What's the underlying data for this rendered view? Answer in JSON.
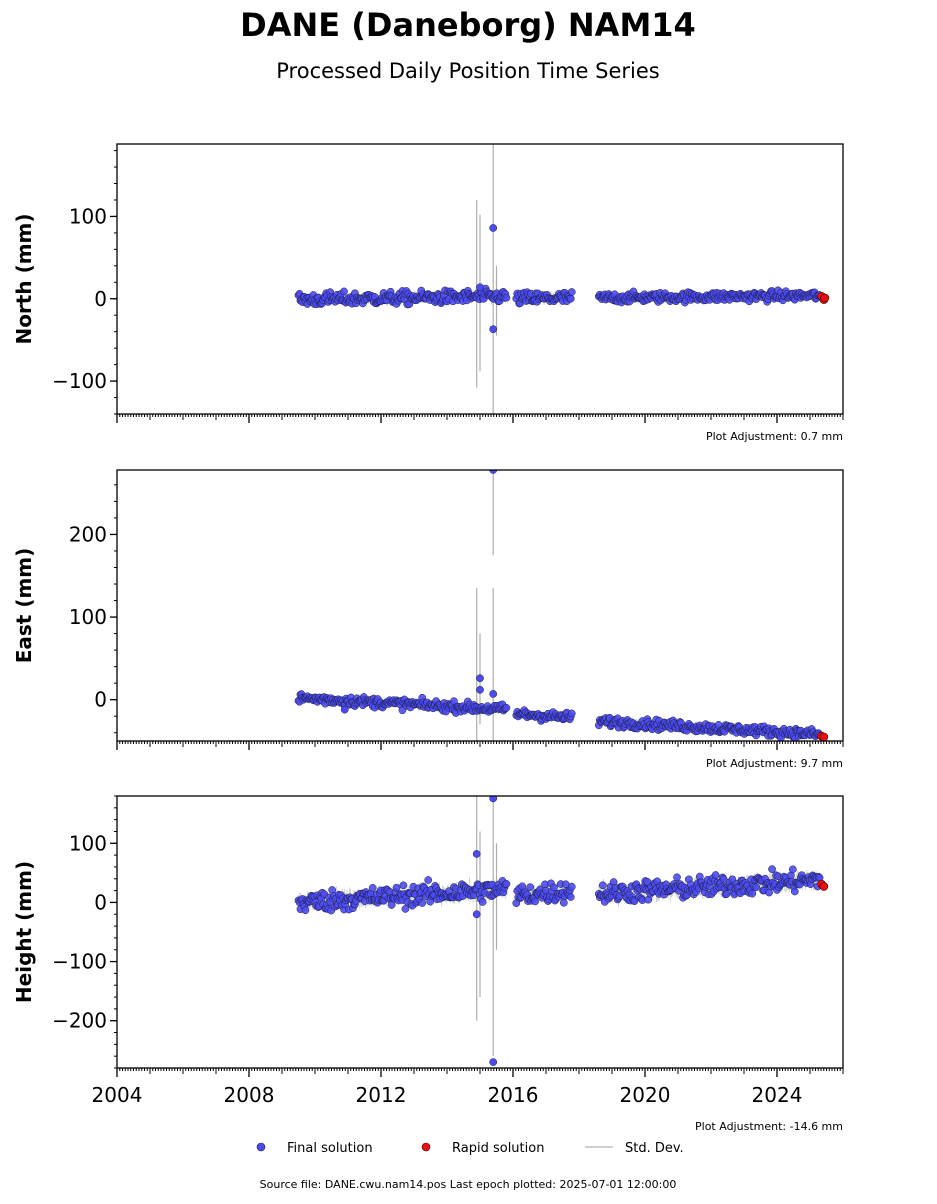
{
  "title": "DANE (Daneborg) NAM14",
  "subtitle": "Processed Daily Position Time Series",
  "footer": "Source file: DANE.cwu.nam14.pos  Last epoch plotted: 2025-07-01 12:00:00",
  "legend": {
    "final_label": "Final solution",
    "rapid_label": "Rapid solution",
    "std_label": "Std. Dev."
  },
  "colors": {
    "final": "#4b4bf0",
    "final_edge": "#1a1a40",
    "rapid": "#e81010",
    "std": "#bdbdbd"
  },
  "chart_data": [
    {
      "type": "scatter",
      "component": "north",
      "ylabel": "North (mm)",
      "ylim": [
        -140,
        188
      ],
      "yticks": [
        -100,
        0,
        100
      ],
      "xlim": [
        2004.0,
        2026.0
      ],
      "xticks": [
        2004,
        2008,
        2012,
        2016,
        2020,
        2024
      ],
      "show_xtick_labels": false,
      "adjustment": "Plot Adjustment: 0.7 mm",
      "segments": [
        {
          "start": 2009.5,
          "end": 2015.8,
          "mean_start": -1,
          "mean_end": 3,
          "noise": 4,
          "std": 5
        },
        {
          "start": 2016.1,
          "end": 2017.8,
          "mean_start": 0,
          "mean_end": 1,
          "noise": 4,
          "std": 5
        },
        {
          "start": 2018.6,
          "end": 2025.3,
          "mean_start": 1,
          "mean_end": 4,
          "noise": 3,
          "std": 4
        }
      ],
      "outliers": [
        [
          2015.4,
          86
        ],
        [
          2015.4,
          -37
        ],
        [
          2015.0,
          14
        ]
      ],
      "std_spikes": [
        [
          2014.9,
          -108,
          120
        ],
        [
          2015.4,
          -140,
          188
        ],
        [
          2015.0,
          -88,
          102
        ],
        [
          2015.5,
          -45,
          40
        ]
      ],
      "rapid": [
        [
          2025.35,
          3
        ],
        [
          2025.42,
          -1
        ],
        [
          2025.45,
          1
        ]
      ]
    },
    {
      "type": "scatter",
      "component": "east",
      "ylabel": "East (mm)",
      "ylim": [
        -50,
        278
      ],
      "yticks": [
        0,
        100,
        200
      ],
      "xlim": [
        2004.0,
        2026.0
      ],
      "xticks": [
        2004,
        2008,
        2012,
        2016,
        2020,
        2024
      ],
      "show_xtick_labels": false,
      "adjustment": "Plot Adjustment: 9.7 mm",
      "segments": [
        {
          "start": 2009.5,
          "end": 2015.8,
          "mean_start": 2,
          "mean_end": -12,
          "noise": 3,
          "std": 4
        },
        {
          "start": 2016.1,
          "end": 2017.8,
          "mean_start": -17,
          "mean_end": -22,
          "noise": 3,
          "std": 4
        },
        {
          "start": 2018.6,
          "end": 2025.3,
          "mean_start": -26,
          "mean_end": -42,
          "noise": 3,
          "std": 4
        }
      ],
      "outliers": [
        [
          2015.4,
          278
        ],
        [
          2015.0,
          26
        ],
        [
          2015.0,
          12
        ],
        [
          2015.4,
          7
        ],
        [
          2010.9,
          -12
        ]
      ],
      "std_spikes": [
        [
          2014.9,
          -50,
          135
        ],
        [
          2015.4,
          175,
          278
        ],
        [
          2015.4,
          -50,
          135
        ],
        [
          2015.0,
          -30,
          80
        ]
      ],
      "rapid": [
        [
          2025.35,
          -44
        ],
        [
          2025.42,
          -45
        ]
      ]
    },
    {
      "type": "scatter",
      "component": "height",
      "ylabel": "Height (mm)",
      "ylim": [
        -280,
        180
      ],
      "yticks": [
        -200,
        -100,
        0,
        100
      ],
      "xlim": [
        2004.0,
        2026.0
      ],
      "xticks": [
        2004,
        2008,
        2012,
        2016,
        2020,
        2024
      ],
      "show_xtick_labels": true,
      "adjustment": "Plot Adjustment: -14.6 mm",
      "segments": [
        {
          "start": 2009.5,
          "end": 2015.8,
          "mean_start": 0,
          "mean_end": 22,
          "noise": 9,
          "std": 12
        },
        {
          "start": 2016.1,
          "end": 2017.8,
          "mean_start": 12,
          "mean_end": 20,
          "noise": 9,
          "std": 12
        },
        {
          "start": 2018.6,
          "end": 2025.3,
          "mean_start": 15,
          "mean_end": 38,
          "noise": 9,
          "std": 12
        }
      ],
      "outliers": [
        [
          2015.4,
          176
        ],
        [
          2014.9,
          82
        ],
        [
          2015.4,
          -270
        ],
        [
          2014.9,
          -20
        ]
      ],
      "std_spikes": [
        [
          2014.9,
          -200,
          180
        ],
        [
          2015.4,
          -260,
          180
        ],
        [
          2015.0,
          -160,
          120
        ],
        [
          2015.5,
          -80,
          100
        ]
      ],
      "rapid": [
        [
          2025.35,
          31
        ],
        [
          2025.42,
          27
        ]
      ]
    }
  ]
}
